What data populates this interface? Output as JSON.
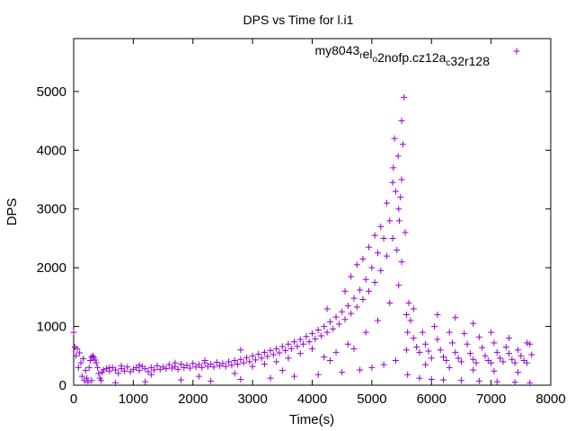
{
  "chart_data": {
    "type": "scatter",
    "title": "DPS vs Time for l.i1",
    "xlabel": "Time(s)",
    "ylabel": "DPS",
    "xlim": [
      0,
      8000
    ],
    "ylim": [
      0,
      5900
    ],
    "xticks": [
      0,
      1000,
      2000,
      3000,
      4000,
      5000,
      6000,
      7000,
      8000
    ],
    "yticks": [
      0,
      1000,
      2000,
      3000,
      4000,
      5000
    ],
    "grid": false,
    "legend": "top-right",
    "marker": "+",
    "series": [
      {
        "name": "my8043_rel_o2nofp.cz12a_c32r128",
        "legend_parts": [
          {
            "text": "my8043",
            "sub": false
          },
          {
            "text": "r",
            "sub": true
          },
          {
            "text": "el",
            "sub": false
          },
          {
            "text": "o",
            "sub": true
          },
          {
            "text": "2nofp.cz12a",
            "sub": false
          },
          {
            "text": "c",
            "sub": true
          },
          {
            "text": "32r128",
            "sub": false
          }
        ],
        "color": "#9400d3",
        "points": [
          [
            0,
            900
          ],
          [
            20,
            650
          ],
          [
            40,
            500
          ],
          [
            60,
            620
          ],
          [
            80,
            300
          ],
          [
            100,
            550
          ],
          [
            120,
            380
          ],
          [
            140,
            150
          ],
          [
            160,
            450
          ],
          [
            180,
            80
          ],
          [
            200,
            250
          ],
          [
            220,
            120
          ],
          [
            240,
            50
          ],
          [
            260,
            300
          ],
          [
            280,
            420
          ],
          [
            300,
            480
          ],
          [
            320,
            500
          ],
          [
            340,
            470
          ],
          [
            360,
            430
          ],
          [
            380,
            380
          ],
          [
            400,
            300
          ],
          [
            420,
            200
          ],
          [
            440,
            120
          ],
          [
            460,
            80
          ],
          [
            480,
            220
          ],
          [
            500,
            260
          ],
          [
            550,
            280
          ],
          [
            600,
            240
          ],
          [
            650,
            300
          ],
          [
            700,
            260
          ],
          [
            750,
            200
          ],
          [
            800,
            280
          ],
          [
            850,
            240
          ],
          [
            900,
            310
          ],
          [
            950,
            230
          ],
          [
            1000,
            270
          ],
          [
            1050,
            300
          ],
          [
            1100,
            250
          ],
          [
            1150,
            320
          ],
          [
            1200,
            280
          ],
          [
            1250,
            230
          ],
          [
            1300,
            300
          ],
          [
            1350,
            260
          ],
          [
            1400,
            330
          ],
          [
            1450,
            270
          ],
          [
            1500,
            310
          ],
          [
            1550,
            280
          ],
          [
            1600,
            350
          ],
          [
            1650,
            290
          ],
          [
            1700,
            320
          ],
          [
            1750,
            270
          ],
          [
            1800,
            360
          ],
          [
            1850,
            300
          ],
          [
            1900,
            340
          ],
          [
            1950,
            290
          ],
          [
            2000,
            370
          ],
          [
            2050,
            310
          ],
          [
            2100,
            350
          ],
          [
            2150,
            300
          ],
          [
            2200,
            380
          ],
          [
            2250,
            320
          ],
          [
            2300,
            360
          ],
          [
            2350,
            310
          ],
          [
            2400,
            390
          ],
          [
            2450,
            330
          ],
          [
            2500,
            370
          ],
          [
            2550,
            320
          ],
          [
            2600,
            400
          ],
          [
            2650,
            340
          ],
          [
            2700,
            420
          ],
          [
            2750,
            360
          ],
          [
            2800,
            440
          ],
          [
            2850,
            380
          ],
          [
            2900,
            470
          ],
          [
            2950,
            400
          ],
          [
            3000,
            500
          ],
          [
            3050,
            430
          ],
          [
            3100,
            530
          ],
          [
            3150,
            460
          ],
          [
            3200,
            560
          ],
          [
            3250,
            490
          ],
          [
            3300,
            590
          ],
          [
            3350,
            520
          ],
          [
            3400,
            620
          ],
          [
            3450,
            550
          ],
          [
            3500,
            660
          ],
          [
            3550,
            590
          ],
          [
            3600,
            700
          ],
          [
            3650,
            620
          ],
          [
            3700,
            740
          ],
          [
            3750,
            660
          ],
          [
            3800,
            780
          ],
          [
            3850,
            700
          ],
          [
            3900,
            830
          ],
          [
            3950,
            740
          ],
          [
            4000,
            880
          ],
          [
            4050,
            790
          ],
          [
            4100,
            940
          ],
          [
            4150,
            840
          ],
          [
            4200,
            1000
          ],
          [
            4250,
            900
          ],
          [
            4300,
            1080
          ],
          [
            4350,
            960
          ],
          [
            4400,
            1160
          ],
          [
            4450,
            1040
          ],
          [
            4500,
            1250
          ],
          [
            4550,
            1120
          ],
          [
            4600,
            1350
          ],
          [
            4650,
            1220
          ],
          [
            4700,
            1480
          ],
          [
            4750,
            1330
          ],
          [
            4800,
            1620
          ],
          [
            4850,
            1460
          ],
          [
            4900,
            1800
          ],
          [
            4950,
            1600
          ],
          [
            5000,
            2000
          ],
          [
            5050,
            1750
          ],
          [
            5100,
            2250
          ],
          [
            5150,
            1950
          ],
          [
            5200,
            2500
          ],
          [
            5250,
            2200
          ],
          [
            5300,
            2800
          ],
          [
            5350,
            2500
          ],
          [
            5400,
            3300
          ],
          [
            5450,
            3000
          ],
          [
            5500,
            3500
          ],
          [
            5520,
            4100
          ],
          [
            5540,
            4900
          ],
          [
            5560,
            2600
          ],
          [
            5580,
            1200
          ],
          [
            5600,
            900
          ],
          [
            5650,
            1100
          ],
          [
            5700,
            800
          ],
          [
            5750,
            650
          ],
          [
            5800,
            560
          ],
          [
            5850,
            900
          ],
          [
            5900,
            700
          ],
          [
            5950,
            580
          ],
          [
            6000,
            460
          ],
          [
            6050,
            1000
          ],
          [
            6100,
            780
          ],
          [
            6150,
            600
          ],
          [
            6200,
            480
          ],
          [
            6250,
            420
          ],
          [
            6300,
            900
          ],
          [
            6350,
            720
          ],
          [
            6400,
            560
          ],
          [
            6450,
            460
          ],
          [
            6500,
            400
          ],
          [
            6550,
            880
          ],
          [
            6600,
            700
          ],
          [
            6650,
            540
          ],
          [
            6700,
            440
          ],
          [
            6750,
            380
          ],
          [
            6800,
            820
          ],
          [
            6850,
            640
          ],
          [
            6900,
            500
          ],
          [
            6950,
            420
          ],
          [
            7000,
            380
          ],
          [
            7050,
            720
          ],
          [
            7100,
            560
          ],
          [
            7150,
            460
          ],
          [
            7200,
            400
          ],
          [
            7250,
            650
          ],
          [
            7300,
            540
          ],
          [
            7350,
            440
          ],
          [
            7400,
            380
          ],
          [
            7450,
            600
          ],
          [
            7500,
            500
          ],
          [
            7550,
            420
          ],
          [
            7600,
            380
          ],
          [
            7650,
            700
          ],
          [
            7680,
            520
          ],
          [
            300,
            80
          ],
          [
            700,
            40
          ],
          [
            1200,
            60
          ],
          [
            1800,
            90
          ],
          [
            2300,
            70
          ],
          [
            2800,
            100
          ],
          [
            3300,
            120
          ],
          [
            3700,
            150
          ],
          [
            4100,
            180
          ],
          [
            4500,
            220
          ],
          [
            4800,
            260
          ],
          [
            5000,
            300
          ],
          [
            5200,
            350
          ],
          [
            5400,
            420
          ],
          [
            5600,
            180
          ],
          [
            5800,
            120
          ],
          [
            6000,
            100
          ],
          [
            6200,
            90
          ],
          [
            6500,
            80
          ],
          [
            6800,
            70
          ],
          [
            7100,
            60
          ],
          [
            7400,
            50
          ],
          [
            7650,
            40
          ],
          [
            1300,
            180
          ],
          [
            2100,
            150
          ],
          [
            2700,
            200
          ],
          [
            3500,
            250
          ],
          [
            4300,
            420
          ],
          [
            4700,
            620
          ],
          [
            4900,
            900
          ],
          [
            5100,
            1100
          ],
          [
            5300,
            1400
          ],
          [
            5450,
            1700
          ],
          [
            5500,
            2100
          ],
          [
            5480,
            3200
          ],
          [
            5460,
            2800
          ],
          [
            5420,
            2300
          ],
          [
            5380,
            4200
          ],
          [
            5360,
            3700
          ],
          [
            5500,
            4500
          ],
          [
            5440,
            3900
          ],
          [
            4600,
            700
          ],
          [
            4400,
            560
          ],
          [
            4200,
            480
          ],
          [
            4000,
            620
          ],
          [
            3800,
            540
          ],
          [
            3600,
            460
          ],
          [
            3400,
            400
          ],
          [
            3200,
            360
          ],
          [
            3000,
            320
          ],
          [
            2800,
            600
          ],
          [
            2200,
            420
          ],
          [
            1700,
            380
          ],
          [
            1100,
            340
          ],
          [
            800,
            330
          ],
          [
            600,
            300
          ],
          [
            4250,
            1300
          ],
          [
            4550,
            1600
          ],
          [
            4750,
            2050
          ],
          [
            4950,
            2350
          ],
          [
            5150,
            2700
          ],
          [
            5250,
            3100
          ],
          [
            5350,
            3450
          ],
          [
            5050,
            2550
          ],
          [
            4850,
            2150
          ],
          [
            4650,
            1850
          ],
          [
            5580,
            600
          ],
          [
            5620,
            1400
          ],
          [
            5700,
            1300
          ],
          [
            6100,
            1200
          ],
          [
            6400,
            1150
          ],
          [
            6700,
            1050
          ],
          [
            7000,
            900
          ],
          [
            7300,
            800
          ],
          [
            7600,
            720
          ],
          [
            5900,
            350
          ],
          [
            6300,
            300
          ],
          [
            6700,
            260
          ],
          [
            7050,
            240
          ],
          [
            7450,
            220
          ]
        ]
      }
    ]
  }
}
